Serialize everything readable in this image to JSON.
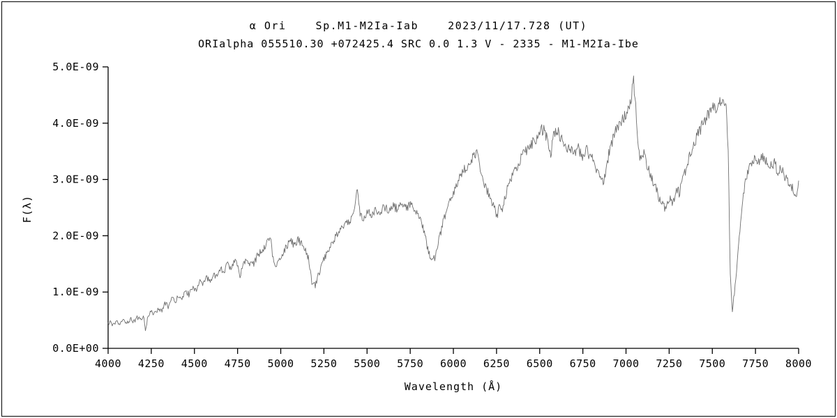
{
  "titles": {
    "line1": "α Ori    Sp.M1-M2Ia-Iab    2023/11/17.728 (UT)",
    "line2": "ORIalpha 055510.30 +072425.4 SRC 0.0 1.3 V - 2335 - M1-M2Ia-Ibe"
  },
  "axes": {
    "x": {
      "label": "Wavelength (Å)",
      "min": 4000,
      "max": 8000,
      "tick_step": 250,
      "ticks": [
        4000,
        4250,
        4500,
        4750,
        5000,
        5250,
        5500,
        5750,
        6000,
        6250,
        6500,
        6750,
        7000,
        7250,
        7500,
        7750,
        8000
      ],
      "tick_labels": [
        "4000",
        "4250",
        "4500",
        "4750",
        "5000",
        "5250",
        "5500",
        "5750",
        "6000",
        "6250",
        "6500",
        "6750",
        "7000",
        "7250",
        "7500",
        "7750",
        "8000"
      ]
    },
    "y": {
      "label": "F(λ)",
      "min": 0,
      "max": 5e-09,
      "ticks": [
        0,
        1,
        2,
        3,
        4,
        5
      ],
      "tick_labels": [
        "0.0E+00",
        "1.0E-09",
        "2.0E-09",
        "3.0E-09",
        "4.0E-09",
        "5.0E-09"
      ]
    }
  },
  "style": {
    "line_color": "#6f6f6f",
    "axis_color": "#000000",
    "background": "#ffffff"
  },
  "chart_data": {
    "type": "line",
    "title": "α Ori    Sp.M1-M2Ia-Iab    2023/11/17.728 (UT)",
    "subtitle": "ORIalpha 055510.30 +072425.4 SRC 0.0 1.3 V - 2335 - M1-M2Ia-Ibe",
    "xlabel": "Wavelength (Å)",
    "ylabel": "F(λ)",
    "xlim": [
      4000,
      8000
    ],
    "ylim": [
      0,
      5e-09
    ],
    "grid": false,
    "legend": false,
    "noise": {
      "seed": 12345,
      "base": 0.03,
      "proportional": 0.02,
      "step": 4
    },
    "series": [
      {
        "name": "alpha-Ori-flux",
        "flux_scale": 1e-09,
        "points": [
          [
            4000,
            0.42
          ],
          [
            4015,
            0.48
          ],
          [
            4030,
            0.4
          ],
          [
            4050,
            0.46
          ],
          [
            4070,
            0.43
          ],
          [
            4090,
            0.5
          ],
          [
            4110,
            0.46
          ],
          [
            4130,
            0.52
          ],
          [
            4150,
            0.48
          ],
          [
            4170,
            0.55
          ],
          [
            4190,
            0.5
          ],
          [
            4205,
            0.58
          ],
          [
            4218,
            0.3
          ],
          [
            4232,
            0.6
          ],
          [
            4250,
            0.66
          ],
          [
            4270,
            0.6
          ],
          [
            4290,
            0.72
          ],
          [
            4310,
            0.65
          ],
          [
            4330,
            0.8
          ],
          [
            4350,
            0.74
          ],
          [
            4370,
            0.88
          ],
          [
            4390,
            0.82
          ],
          [
            4410,
            0.95
          ],
          [
            4430,
            0.88
          ],
          [
            4450,
            1.02
          ],
          [
            4470,
            0.95
          ],
          [
            4490,
            1.1
          ],
          [
            4510,
            1.04
          ],
          [
            4530,
            1.18
          ],
          [
            4550,
            1.12
          ],
          [
            4570,
            1.26
          ],
          [
            4590,
            1.18
          ],
          [
            4610,
            1.34
          ],
          [
            4630,
            1.26
          ],
          [
            4650,
            1.42
          ],
          [
            4670,
            1.34
          ],
          [
            4690,
            1.5
          ],
          [
            4710,
            1.42
          ],
          [
            4730,
            1.56
          ],
          [
            4750,
            1.46
          ],
          [
            4765,
            1.28
          ],
          [
            4780,
            1.52
          ],
          [
            4800,
            1.58
          ],
          [
            4815,
            1.48
          ],
          [
            4830,
            1.6
          ],
          [
            4845,
            1.5
          ],
          [
            4860,
            1.62
          ],
          [
            4880,
            1.7
          ],
          [
            4900,
            1.78
          ],
          [
            4920,
            1.88
          ],
          [
            4940,
            2.0
          ],
          [
            4955,
            1.6
          ],
          [
            4970,
            1.42
          ],
          [
            4985,
            1.52
          ],
          [
            5000,
            1.62
          ],
          [
            5020,
            1.74
          ],
          [
            5040,
            1.84
          ],
          [
            5060,
            1.92
          ],
          [
            5080,
            1.8
          ],
          [
            5100,
            1.94
          ],
          [
            5120,
            1.86
          ],
          [
            5140,
            1.76
          ],
          [
            5160,
            1.6
          ],
          [
            5180,
            1.15
          ],
          [
            5200,
            1.12
          ],
          [
            5220,
            1.32
          ],
          [
            5245,
            1.55
          ],
          [
            5270,
            1.72
          ],
          [
            5300,
            1.9
          ],
          [
            5330,
            2.04
          ],
          [
            5360,
            2.14
          ],
          [
            5390,
            2.24
          ],
          [
            5420,
            2.34
          ],
          [
            5442,
            2.88
          ],
          [
            5458,
            2.42
          ],
          [
            5480,
            2.3
          ],
          [
            5500,
            2.44
          ],
          [
            5525,
            2.34
          ],
          [
            5550,
            2.48
          ],
          [
            5575,
            2.38
          ],
          [
            5600,
            2.52
          ],
          [
            5625,
            2.42
          ],
          [
            5650,
            2.56
          ],
          [
            5675,
            2.46
          ],
          [
            5700,
            2.58
          ],
          [
            5725,
            2.48
          ],
          [
            5750,
            2.58
          ],
          [
            5775,
            2.44
          ],
          [
            5800,
            2.34
          ],
          [
            5825,
            2.12
          ],
          [
            5850,
            1.8
          ],
          [
            5872,
            1.58
          ],
          [
            5895,
            1.62
          ],
          [
            5915,
            1.92
          ],
          [
            5940,
            2.22
          ],
          [
            5965,
            2.48
          ],
          [
            5990,
            2.68
          ],
          [
            6015,
            2.86
          ],
          [
            6040,
            3.04
          ],
          [
            6065,
            3.18
          ],
          [
            6090,
            3.3
          ],
          [
            6115,
            3.4
          ],
          [
            6140,
            3.46
          ],
          [
            6158,
            3.12
          ],
          [
            6180,
            2.92
          ],
          [
            6205,
            2.74
          ],
          [
            6230,
            2.56
          ],
          [
            6252,
            2.34
          ],
          [
            6268,
            2.56
          ],
          [
            6282,
            2.4
          ],
          [
            6300,
            2.7
          ],
          [
            6325,
            2.94
          ],
          [
            6350,
            3.12
          ],
          [
            6375,
            3.28
          ],
          [
            6400,
            3.42
          ],
          [
            6425,
            3.52
          ],
          [
            6450,
            3.62
          ],
          [
            6475,
            3.72
          ],
          [
            6500,
            3.82
          ],
          [
            6520,
            3.9
          ],
          [
            6542,
            3.74
          ],
          [
            6563,
            3.42
          ],
          [
            6582,
            3.8
          ],
          [
            6600,
            3.9
          ],
          [
            6620,
            3.74
          ],
          [
            6645,
            3.62
          ],
          [
            6670,
            3.54
          ],
          [
            6695,
            3.46
          ],
          [
            6720,
            3.56
          ],
          [
            6745,
            3.42
          ],
          [
            6770,
            3.52
          ],
          [
            6795,
            3.4
          ],
          [
            6820,
            3.28
          ],
          [
            6851,
            3.02
          ],
          [
            6870,
            2.96
          ],
          [
            6890,
            3.3
          ],
          [
            6910,
            3.58
          ],
          [
            6930,
            3.78
          ],
          [
            6950,
            3.9
          ],
          [
            6970,
            4.0
          ],
          [
            6990,
            4.1
          ],
          [
            7010,
            4.22
          ],
          [
            7030,
            4.42
          ],
          [
            7044,
            4.78
          ],
          [
            7056,
            4.3
          ],
          [
            7068,
            3.62
          ],
          [
            7085,
            3.34
          ],
          [
            7105,
            3.46
          ],
          [
            7125,
            3.22
          ],
          [
            7150,
            3.02
          ],
          [
            7175,
            2.82
          ],
          [
            7200,
            2.62
          ],
          [
            7228,
            2.46
          ],
          [
            7250,
            2.7
          ],
          [
            7270,
            2.56
          ],
          [
            7292,
            2.84
          ],
          [
            7310,
            2.76
          ],
          [
            7330,
            3.0
          ],
          [
            7355,
            3.28
          ],
          [
            7380,
            3.52
          ],
          [
            7405,
            3.72
          ],
          [
            7430,
            3.88
          ],
          [
            7455,
            4.04
          ],
          [
            7480,
            4.18
          ],
          [
            7505,
            4.32
          ],
          [
            7525,
            4.26
          ],
          [
            7545,
            4.38
          ],
          [
            7562,
            4.32
          ],
          [
            7578,
            4.38
          ],
          [
            7592,
            3.6
          ],
          [
            7603,
            1.4
          ],
          [
            7616,
            0.66
          ],
          [
            7630,
            1.05
          ],
          [
            7645,
            1.55
          ],
          [
            7662,
            2.15
          ],
          [
            7680,
            2.75
          ],
          [
            7700,
            3.08
          ],
          [
            7722,
            3.24
          ],
          [
            7745,
            3.38
          ],
          [
            7768,
            3.28
          ],
          [
            7790,
            3.42
          ],
          [
            7812,
            3.32
          ],
          [
            7835,
            3.24
          ],
          [
            7858,
            3.3
          ],
          [
            7880,
            3.14
          ],
          [
            7902,
            3.18
          ],
          [
            7925,
            3.02
          ],
          [
            7948,
            2.92
          ],
          [
            7970,
            2.82
          ],
          [
            7985,
            2.74
          ],
          [
            8000,
            2.9
          ]
        ]
      }
    ]
  }
}
